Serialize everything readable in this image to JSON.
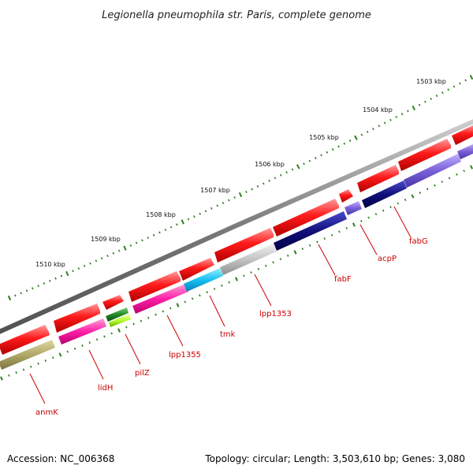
{
  "title": "Legionella pneumophila str. Paris, complete genome",
  "footer": {
    "accession": "Accession: NC_006368",
    "summary": "Topology: circular; Length: 3,503,610 bp; Genes: 3,080"
  },
  "ticks": [
    {
      "label": "1503 kbp"
    },
    {
      "label": "1504 kbp"
    },
    {
      "label": "1505 kbp"
    },
    {
      "label": "1506 kbp"
    },
    {
      "label": "1507 kbp"
    },
    {
      "label": "1508 kbp"
    },
    {
      "label": "1509 kbp"
    },
    {
      "label": "1510 kbp"
    }
  ],
  "genes": [
    {
      "name": "fabG"
    },
    {
      "name": "acpP"
    },
    {
      "name": "fabF"
    },
    {
      "name": "lpp1353"
    },
    {
      "name": "tmk"
    },
    {
      "name": "lpp1355"
    },
    {
      "name": "pilZ"
    },
    {
      "name": "lidH"
    },
    {
      "name": "anmK"
    }
  ],
  "colors": {
    "backbone": "#8a8a8a",
    "cds_strand": "#ff0000",
    "tick_marks": "#2e7d1e",
    "gene_label": "#cc0000"
  }
}
